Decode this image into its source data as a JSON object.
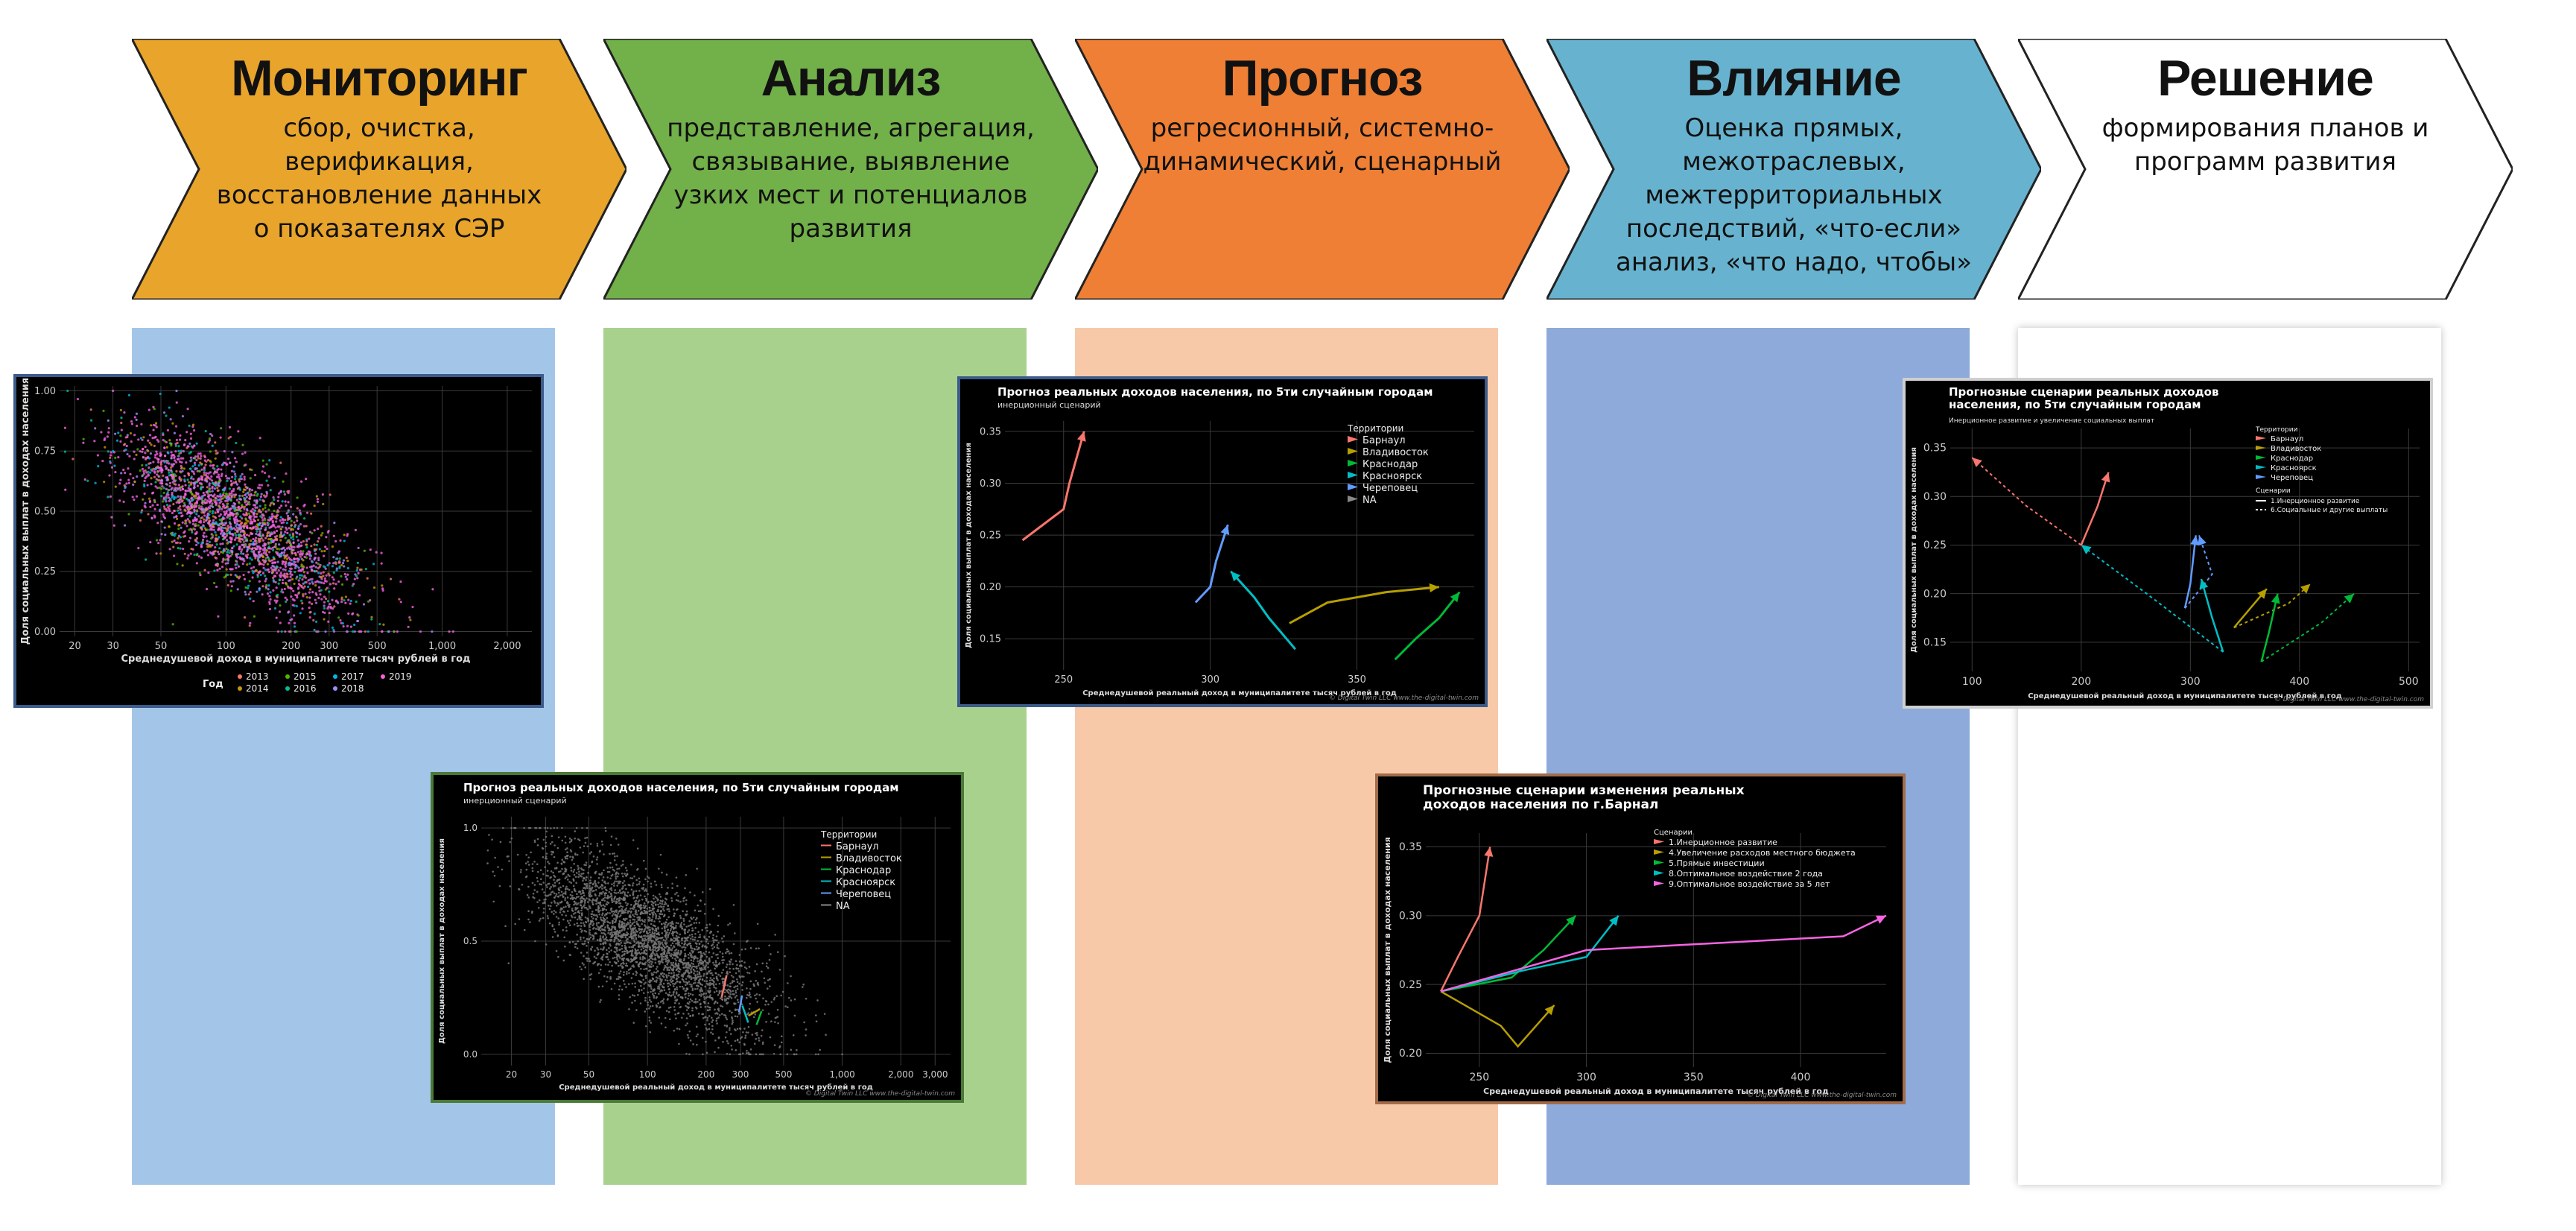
{
  "stages": [
    {
      "id": "monitoring",
      "title": "Мониторинг",
      "desc": [
        "сбор, очистка,",
        "верификация,",
        "восстановление данных",
        "о показателях СЭР"
      ],
      "color": "#E8A42B",
      "bg": "#A3C6E8"
    },
    {
      "id": "analysis",
      "title": "Анализ",
      "desc": [
        "представление, агрегация,",
        "связывание, выявление",
        "узких мест и потенциалов",
        "развития"
      ],
      "color": "#72B04A",
      "bg": "#A9D18E"
    },
    {
      "id": "forecast",
      "title": "Прогноз",
      "desc": [
        "регресионный, системно-",
        "динамический, сценарный"
      ],
      "color": "#EE7F34",
      "bg": "#F7C9A9"
    },
    {
      "id": "impact",
      "title": "Влияние",
      "desc": [
        "Оценка прямых,",
        "межотраслевых,",
        "межтерриториальных",
        "последствий, «что-если»",
        "анализ, «что надо, чтобы»"
      ],
      "color": "#67B3CF",
      "bg": "#8EAADB"
    },
    {
      "id": "decision",
      "title": "Решение",
      "desc": [
        "формирования планов и",
        "программ развития"
      ],
      "color": "#FFFFFF",
      "bg": "#FFFFFF"
    }
  ],
  "colors": {
    "barnaul": "#F8766D",
    "vladivostok": "#B79F00",
    "krasnodar": "#00BA38",
    "krasnoyarsk": "#00BFC4",
    "cherepovets": "#619CFF",
    "na": "#F564E3",
    "grid": "#3a3a3a"
  },
  "chart_data": [
    {
      "id": "chart1",
      "type": "scatter",
      "title": "",
      "xlabel": "Среднедушевой доход в муниципалитете тысяч рублей в год",
      "ylabel": "Доля социальных выплат в доходах населения",
      "x_scale": "log",
      "xticks": [
        "20",
        "30",
        "50",
        "100",
        "200",
        "300",
        "500",
        "1,000",
        "2,000"
      ],
      "xtick_values": [
        20,
        30,
        50,
        100,
        200,
        300,
        500,
        1000,
        2000
      ],
      "yticks": [
        "0.00",
        "0.25",
        "0.50",
        "0.75",
        "1.00"
      ],
      "ytick_values": [
        0,
        0.25,
        0.5,
        0.75,
        1.0
      ],
      "ylim": [
        0,
        1.0
      ],
      "legend_title": "Год",
      "legend": [
        "2013",
        "2014",
        "2015",
        "2016",
        "2017",
        "2018",
        "2019"
      ],
      "point_cloud": {
        "center_x": 110,
        "center_y": 0.45,
        "note": "dense multicolor cloud, decreasing trend"
      }
    },
    {
      "id": "chart2",
      "type": "scatter",
      "title": "Прогноз реальных доходов населения, по 5ти случайным городам",
      "subtitle": "инерционный сценарий",
      "xlabel": "Среднедушевой реальный доход в муниципалитете тысяч рублей в год",
      "ylabel": "Доля социальных выплат в доходах населения",
      "x_scale": "log",
      "xticks": [
        "20",
        "30",
        "50",
        "100",
        "200",
        "300",
        "500",
        "1,000",
        "2,000",
        "3,000"
      ],
      "xtick_values": [
        20,
        30,
        50,
        100,
        200,
        300,
        500,
        1000,
        2000,
        3000
      ],
      "yticks": [
        "0.0",
        "0.5",
        "1.0"
      ],
      "ytick_values": [
        0,
        0.5,
        1.0
      ],
      "ylim": [
        0,
        1.0
      ],
      "legend_title": "Территории",
      "legend": [
        "Барнаул",
        "Владивосток",
        "Краснодар",
        "Красноярск",
        "Череповец",
        "NA"
      ],
      "credit": "© Digital Twin LLC www.the-digital-twin.com"
    },
    {
      "id": "chart3",
      "type": "line",
      "title": "Прогноз реальных доходов населения, по 5ти случайным городам",
      "subtitle": "инерционный сценарий",
      "xlabel": "Среднедушевой реальный доход в муниципалитете тысяч рублей в год",
      "ylabel": "Доля социальных выплат в доходах населения",
      "xticks": [
        "250",
        "300",
        "350"
      ],
      "xtick_values": [
        250,
        300,
        350
      ],
      "yticks": [
        "0.15",
        "0.20",
        "0.25",
        "0.30",
        "0.35"
      ],
      "ytick_values": [
        0.15,
        0.2,
        0.25,
        0.3,
        0.35
      ],
      "xlim": [
        230,
        390
      ],
      "ylim": [
        0.12,
        0.36
      ],
      "legend_title": "Территории",
      "legend": [
        "Барнаул",
        "Владивосток",
        "Краснодар",
        "Красноярск",
        "Череповец",
        "NA"
      ],
      "series": [
        {
          "name": "Барнаул",
          "points": [
            [
              236,
              0.245
            ],
            [
              250,
              0.275
            ],
            [
              252,
              0.3
            ],
            [
              257,
              0.35
            ]
          ]
        },
        {
          "name": "Владивосток",
          "points": [
            [
              327,
              0.165
            ],
            [
              340,
              0.185
            ],
            [
              360,
              0.195
            ],
            [
              378,
              0.2
            ]
          ]
        },
        {
          "name": "Краснодар",
          "points": [
            [
              363,
              0.13
            ],
            [
              370,
              0.15
            ],
            [
              378,
              0.17
            ],
            [
              385,
              0.195
            ]
          ]
        },
        {
          "name": "Красноярск",
          "points": [
            [
              329,
              0.14
            ],
            [
              320,
              0.17
            ],
            [
              315,
              0.19
            ],
            [
              307,
              0.215
            ]
          ]
        },
        {
          "name": "Череповец",
          "points": [
            [
              295,
              0.185
            ],
            [
              300,
              0.2
            ],
            [
              302,
              0.225
            ],
            [
              306,
              0.26
            ]
          ]
        }
      ],
      "credit": "© Digital Twin LLC www.the-digital-twin.com"
    },
    {
      "id": "chart4",
      "type": "line",
      "title": "Прогнозные сценарии изменения реальных доходов населения по г.Барнал",
      "xlabel": "Среднедушевой реальный доход в муниципалитете тысяч рублей в год",
      "ylabel": "Доля социальных выплат в доходах населения",
      "xticks": [
        "250",
        "300",
        "350",
        "400"
      ],
      "xtick_values": [
        250,
        300,
        350,
        400
      ],
      "yticks": [
        "0.20",
        "0.25",
        "0.30",
        "0.35"
      ],
      "ytick_values": [
        0.2,
        0.25,
        0.3,
        0.35
      ],
      "xlim": [
        225,
        440
      ],
      "ylim": [
        0.19,
        0.36
      ],
      "legend_title": "Сценарии",
      "legend": [
        "1.Инерционное развитие",
        "4.Увеличение расходов местного бюджета",
        "5.Прямые инвестиции",
        "8.Оптимальное воздействие 2 года",
        "9.Оптимальное воздействие за 5 лет"
      ],
      "series": [
        {
          "name": "1.Инерционное развитие",
          "points": [
            [
              232,
              0.245
            ],
            [
              240,
              0.27
            ],
            [
              250,
              0.3
            ],
            [
              255,
              0.35
            ]
          ]
        },
        {
          "name": "4.Увеличение расходов местного бюджета",
          "points": [
            [
              232,
              0.245
            ],
            [
              260,
              0.22
            ],
            [
              268,
              0.205
            ],
            [
              285,
              0.235
            ]
          ]
        },
        {
          "name": "5.Прямые инвестиции",
          "points": [
            [
              232,
              0.245
            ],
            [
              265,
              0.255
            ],
            [
              280,
              0.275
            ],
            [
              295,
              0.3
            ]
          ]
        },
        {
          "name": "8.Оптимальное воздействие 2 года",
          "points": [
            [
              232,
              0.245
            ],
            [
              270,
              0.26
            ],
            [
              300,
              0.27
            ],
            [
              315,
              0.3
            ]
          ]
        },
        {
          "name": "9.Оптимальное воздействие за 5 лет",
          "points": [
            [
              232,
              0.245
            ],
            [
              300,
              0.275
            ],
            [
              420,
              0.285
            ],
            [
              440,
              0.3
            ]
          ]
        }
      ],
      "credit": "© Digital Twin LLC www.the-digital-twin.com"
    },
    {
      "id": "chart5",
      "type": "line",
      "title": "Прогнозные сценарии реальных доходов населения, по 5ти случайным городам",
      "subtitle": "Инерционное развитие и увеличение социальных выплат",
      "xlabel": "Среднедушевой реальный доход в муниципалитете тысяч рублей в год",
      "ylabel": "Доля социальных выплат в доходах населения",
      "xticks": [
        "100",
        "200",
        "300",
        "400",
        "500"
      ],
      "xtick_values": [
        100,
        200,
        300,
        400,
        500
      ],
      "yticks": [
        "0.15",
        "0.20",
        "0.25",
        "0.30",
        "0.35"
      ],
      "ytick_values": [
        0.15,
        0.2,
        0.25,
        0.3,
        0.35
      ],
      "xlim": [
        80,
        510
      ],
      "ylim": [
        0.12,
        0.37
      ],
      "legend_title": "Территории",
      "legend": [
        "Барнаул",
        "Владивосток",
        "Краснодар",
        "Красноярск",
        "Череповец"
      ],
      "legend2_title": "Сценарии",
      "legend2": [
        "1.Инерционное развитие",
        "6.Социальные и другие выплаты"
      ],
      "credit": "© Digital Twin LLC www.the-digital-twin.com"
    }
  ]
}
